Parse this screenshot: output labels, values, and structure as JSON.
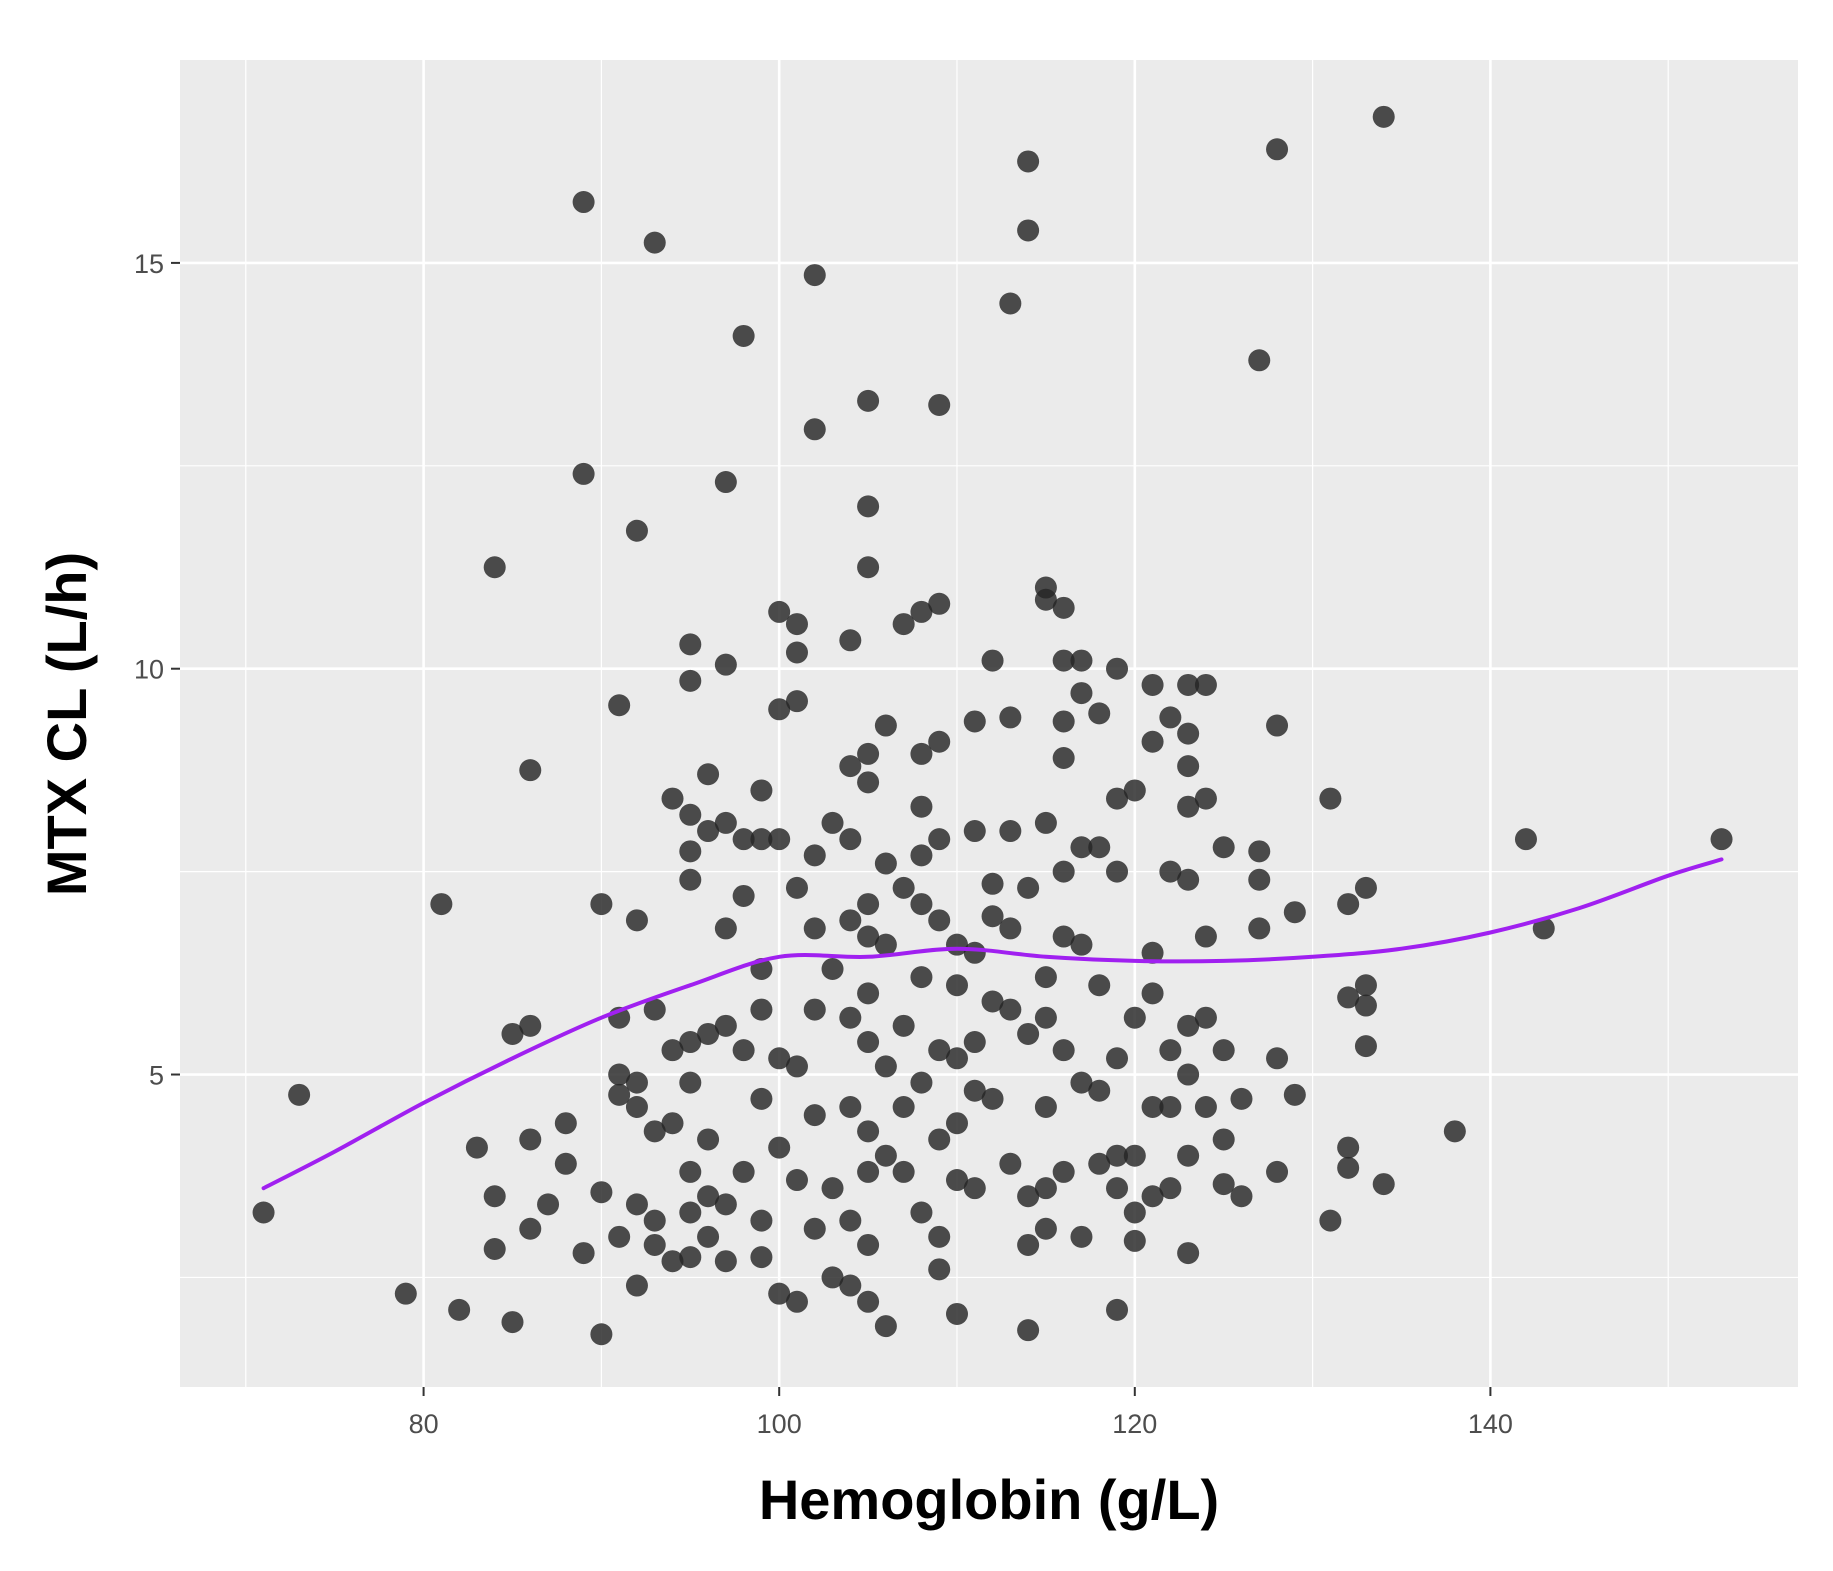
{
  "chart_data": {
    "type": "scatter",
    "title": "",
    "xlabel": "Hemoglobin (g/L)",
    "ylabel": "MTX CL (L/h)",
    "xlim": [
      66.3,
      157.3
    ],
    "ylim": [
      1.15,
      17.5
    ],
    "x_ticks": [
      80,
      100,
      120,
      140
    ],
    "y_ticks": [
      5,
      10,
      15
    ],
    "x_tick_labels": [
      "80",
      "100",
      "120",
      "140"
    ],
    "y_tick_labels": [
      "5",
      "10",
      "15"
    ],
    "grid": true,
    "legend": "none",
    "colors": {
      "panel_background": "#ebebeb",
      "grid": "#ffffff",
      "points": "#262626",
      "smooth_line": "#a020f0"
    },
    "series": [
      {
        "type": "scatter",
        "points": [
          [
            71,
            3.3
          ],
          [
            73,
            4.75
          ],
          [
            79,
            2.3
          ],
          [
            81,
            7.1
          ],
          [
            82,
            2.1
          ],
          [
            83,
            4.1
          ],
          [
            84,
            11.25
          ],
          [
            84,
            3.5
          ],
          [
            84,
            2.85
          ],
          [
            85,
            5.5
          ],
          [
            85,
            1.95
          ],
          [
            86,
            5.6
          ],
          [
            86,
            8.75
          ],
          [
            86,
            4.2
          ],
          [
            86,
            3.1
          ],
          [
            87,
            3.4
          ],
          [
            88,
            4.4
          ],
          [
            88,
            3.9
          ],
          [
            89,
            12.4
          ],
          [
            89,
            15.75
          ],
          [
            89,
            2.8
          ],
          [
            90,
            7.1
          ],
          [
            90,
            3.55
          ],
          [
            90,
            1.8
          ],
          [
            91,
            9.55
          ],
          [
            91,
            5.7
          ],
          [
            91,
            5.0
          ],
          [
            91,
            4.75
          ],
          [
            91,
            3.0
          ],
          [
            92,
            6.9
          ],
          [
            92,
            11.7
          ],
          [
            92,
            4.9
          ],
          [
            92,
            4.6
          ],
          [
            92,
            3.4
          ],
          [
            92,
            2.4
          ],
          [
            93,
            15.25
          ],
          [
            93,
            5.8
          ],
          [
            93,
            4.3
          ],
          [
            93,
            3.2
          ],
          [
            93,
            2.9
          ],
          [
            94,
            8.4
          ],
          [
            94,
            5.3
          ],
          [
            94,
            4.4
          ],
          [
            94,
            2.7
          ],
          [
            95,
            10.3
          ],
          [
            95,
            9.85
          ],
          [
            95,
            8.2
          ],
          [
            95,
            7.75
          ],
          [
            95,
            7.4
          ],
          [
            95,
            5.4
          ],
          [
            95,
            4.9
          ],
          [
            95,
            3.8
          ],
          [
            95,
            3.3
          ],
          [
            95,
            2.75
          ],
          [
            96,
            8.7
          ],
          [
            96,
            8.0
          ],
          [
            96,
            5.5
          ],
          [
            96,
            4.2
          ],
          [
            96,
            3.5
          ],
          [
            96,
            3.0
          ],
          [
            97,
            12.3
          ],
          [
            97,
            10.05
          ],
          [
            97,
            8.1
          ],
          [
            97,
            6.8
          ],
          [
            97,
            5.6
          ],
          [
            97,
            3.4
          ],
          [
            97,
            2.7
          ],
          [
            98,
            14.1
          ],
          [
            98,
            7.9
          ],
          [
            98,
            7.2
          ],
          [
            98,
            5.3
          ],
          [
            98,
            3.8
          ],
          [
            99,
            8.5
          ],
          [
            99,
            7.9
          ],
          [
            99,
            6.3
          ],
          [
            99,
            5.8
          ],
          [
            99,
            4.7
          ],
          [
            99,
            3.2
          ],
          [
            99,
            2.75
          ],
          [
            100,
            10.7
          ],
          [
            100,
            9.5
          ],
          [
            100,
            7.9
          ],
          [
            100,
            5.2
          ],
          [
            100,
            4.1
          ],
          [
            100,
            2.3
          ],
          [
            101,
            10.55
          ],
          [
            101,
            10.2
          ],
          [
            101,
            9.6
          ],
          [
            101,
            7.3
          ],
          [
            101,
            5.1
          ],
          [
            101,
            3.7
          ],
          [
            101,
            2.2
          ],
          [
            102,
            14.85
          ],
          [
            102,
            12.95
          ],
          [
            102,
            7.7
          ],
          [
            102,
            6.8
          ],
          [
            102,
            5.8
          ],
          [
            102,
            4.5
          ],
          [
            102,
            3.1
          ],
          [
            103,
            8.1
          ],
          [
            103,
            6.3
          ],
          [
            103,
            3.6
          ],
          [
            103,
            2.5
          ],
          [
            104,
            10.35
          ],
          [
            104,
            8.8
          ],
          [
            104,
            7.9
          ],
          [
            104,
            6.9
          ],
          [
            104,
            5.7
          ],
          [
            104,
            4.6
          ],
          [
            104,
            3.2
          ],
          [
            104,
            2.4
          ],
          [
            105,
            13.3
          ],
          [
            105,
            12.0
          ],
          [
            105,
            11.25
          ],
          [
            105,
            8.95
          ],
          [
            105,
            8.6
          ],
          [
            105,
            7.1
          ],
          [
            105,
            6.7
          ],
          [
            105,
            6.0
          ],
          [
            105,
            5.4
          ],
          [
            105,
            4.3
          ],
          [
            105,
            3.8
          ],
          [
            105,
            2.9
          ],
          [
            105,
            2.2
          ],
          [
            106,
            9.3
          ],
          [
            106,
            7.6
          ],
          [
            106,
            6.6
          ],
          [
            106,
            5.1
          ],
          [
            106,
            4.0
          ],
          [
            106,
            1.9
          ],
          [
            107,
            10.55
          ],
          [
            107,
            7.3
          ],
          [
            107,
            5.6
          ],
          [
            107,
            4.6
          ],
          [
            107,
            3.8
          ],
          [
            108,
            10.7
          ],
          [
            108,
            8.95
          ],
          [
            108,
            8.3
          ],
          [
            108,
            7.7
          ],
          [
            108,
            7.1
          ],
          [
            108,
            6.2
          ],
          [
            108,
            4.9
          ],
          [
            108,
            3.3
          ],
          [
            109,
            13.25
          ],
          [
            109,
            10.8
          ],
          [
            109,
            9.1
          ],
          [
            109,
            7.9
          ],
          [
            109,
            6.9
          ],
          [
            109,
            5.3
          ],
          [
            109,
            4.2
          ],
          [
            109,
            3.0
          ],
          [
            109,
            2.6
          ],
          [
            110,
            6.6
          ],
          [
            110,
            6.1
          ],
          [
            110,
            5.2
          ],
          [
            110,
            4.4
          ],
          [
            110,
            3.7
          ],
          [
            110,
            2.05
          ],
          [
            111,
            9.35
          ],
          [
            111,
            8.0
          ],
          [
            111,
            6.5
          ],
          [
            111,
            5.4
          ],
          [
            111,
            4.8
          ],
          [
            111,
            3.6
          ],
          [
            112,
            10.1
          ],
          [
            112,
            7.35
          ],
          [
            112,
            6.95
          ],
          [
            112,
            5.9
          ],
          [
            112,
            4.7
          ],
          [
            113,
            14.5
          ],
          [
            113,
            9.4
          ],
          [
            113,
            8.0
          ],
          [
            113,
            6.8
          ],
          [
            113,
            5.8
          ],
          [
            113,
            3.9
          ],
          [
            114,
            16.25
          ],
          [
            114,
            15.4
          ],
          [
            114,
            7.3
          ],
          [
            114,
            5.5
          ],
          [
            114,
            3.5
          ],
          [
            114,
            2.9
          ],
          [
            114,
            1.85
          ],
          [
            115,
            11.0
          ],
          [
            115,
            10.85
          ],
          [
            115,
            8.1
          ],
          [
            115,
            6.2
          ],
          [
            115,
            5.7
          ],
          [
            115,
            4.6
          ],
          [
            115,
            3.6
          ],
          [
            115,
            3.1
          ],
          [
            116,
            10.75
          ],
          [
            116,
            10.1
          ],
          [
            116,
            9.35
          ],
          [
            116,
            8.9
          ],
          [
            116,
            7.5
          ],
          [
            116,
            6.7
          ],
          [
            116,
            5.3
          ],
          [
            116,
            3.8
          ],
          [
            117,
            10.1
          ],
          [
            117,
            9.7
          ],
          [
            117,
            7.8
          ],
          [
            117,
            6.6
          ],
          [
            117,
            4.9
          ],
          [
            117,
            3.0
          ],
          [
            118,
            9.45
          ],
          [
            118,
            7.8
          ],
          [
            118,
            6.1
          ],
          [
            118,
            4.8
          ],
          [
            118,
            3.9
          ],
          [
            119,
            10.0
          ],
          [
            119,
            8.4
          ],
          [
            119,
            7.5
          ],
          [
            119,
            5.2
          ],
          [
            119,
            4.0
          ],
          [
            119,
            3.6
          ],
          [
            119,
            2.1
          ],
          [
            120,
            8.5
          ],
          [
            120,
            5.7
          ],
          [
            120,
            4.0
          ],
          [
            120,
            3.3
          ],
          [
            120,
            2.95
          ],
          [
            121,
            9.8
          ],
          [
            121,
            9.1
          ],
          [
            121,
            6.5
          ],
          [
            121,
            6.0
          ],
          [
            121,
            4.6
          ],
          [
            121,
            3.5
          ],
          [
            122,
            9.4
          ],
          [
            122,
            7.5
          ],
          [
            122,
            5.3
          ],
          [
            122,
            4.6
          ],
          [
            122,
            3.6
          ],
          [
            123,
            9.8
          ],
          [
            123,
            9.2
          ],
          [
            123,
            8.8
          ],
          [
            123,
            8.3
          ],
          [
            123,
            7.4
          ],
          [
            123,
            5.6
          ],
          [
            123,
            5.0
          ],
          [
            123,
            4.0
          ],
          [
            123,
            2.8
          ],
          [
            124,
            9.8
          ],
          [
            124,
            8.4
          ],
          [
            124,
            6.7
          ],
          [
            124,
            5.7
          ],
          [
            124,
            4.6
          ],
          [
            125,
            7.8
          ],
          [
            125,
            5.3
          ],
          [
            125,
            4.2
          ],
          [
            125,
            3.65
          ],
          [
            126,
            4.7
          ],
          [
            126,
            3.5
          ],
          [
            127,
            13.8
          ],
          [
            127,
            7.75
          ],
          [
            127,
            7.4
          ],
          [
            127,
            6.8
          ],
          [
            128,
            16.4
          ],
          [
            128,
            9.3
          ],
          [
            128,
            5.2
          ],
          [
            128,
            3.8
          ],
          [
            129,
            7.0
          ],
          [
            129,
            4.75
          ],
          [
            131,
            8.4
          ],
          [
            131,
            3.2
          ],
          [
            132,
            7.1
          ],
          [
            132,
            5.95
          ],
          [
            132,
            4.1
          ],
          [
            132,
            3.85
          ],
          [
            133,
            7.3
          ],
          [
            133,
            6.1
          ],
          [
            133,
            5.85
          ],
          [
            133,
            5.35
          ],
          [
            134,
            16.8
          ],
          [
            134,
            3.65
          ],
          [
            138,
            4.3
          ],
          [
            142,
            7.9
          ],
          [
            143,
            6.8
          ],
          [
            153,
            7.9
          ]
        ]
      },
      {
        "type": "line",
        "smooth": true,
        "x": [
          71,
          75,
          80,
          85,
          90,
          95,
          100,
          105,
          110,
          115,
          120,
          125,
          130,
          135,
          140,
          145,
          150,
          153
        ],
        "y": [
          3.6,
          4.05,
          4.65,
          5.2,
          5.7,
          6.1,
          6.45,
          6.45,
          6.55,
          6.45,
          6.4,
          6.4,
          6.45,
          6.55,
          6.75,
          7.05,
          7.45,
          7.65
        ]
      }
    ]
  }
}
